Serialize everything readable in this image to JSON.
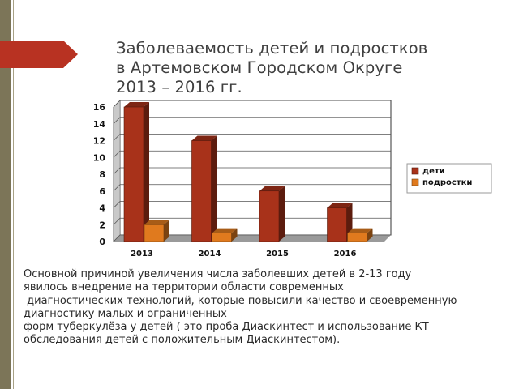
{
  "slide": {
    "title_lines": [
      "Заболеваемость детей и подростков",
      "в Артемовском Городском Округе",
      "2013 – 2016 гг."
    ],
    "body_lines": [
      "Основной причиной увеличения числа заболевших детей в 2-13 году",
      "явилось внедрение на территории области современных",
      " диагностических технологий, которые повысили качество и своевременную",
      "диагностику малых и ограниченных",
      "форм туберкулёза у детей ( это проба Диаскинтест и использование КТ",
      "обследования детей с положительным Диаскинтестом)."
    ]
  },
  "colors": {
    "accent_bar": "#7c7558",
    "arrow": "#b83222",
    "series_children": "#a8321a",
    "series_teens": "#e07a1e"
  },
  "chart_data": {
    "type": "bar",
    "categories": [
      "2013",
      "2014",
      "2015",
      "2016"
    ],
    "series": [
      {
        "name": "дети",
        "values": [
          16,
          12,
          6,
          4
        ],
        "color": "#a8321a"
      },
      {
        "name": "подростки",
        "values": [
          2,
          1,
          0,
          1
        ],
        "color": "#e07a1e"
      }
    ],
    "yticks": [
      "0",
      "2",
      "4",
      "6",
      "8",
      "10",
      "12",
      "14",
      "16"
    ],
    "ylim": [
      0,
      16
    ],
    "grid": true,
    "legend_position": "right",
    "style": "3d"
  }
}
